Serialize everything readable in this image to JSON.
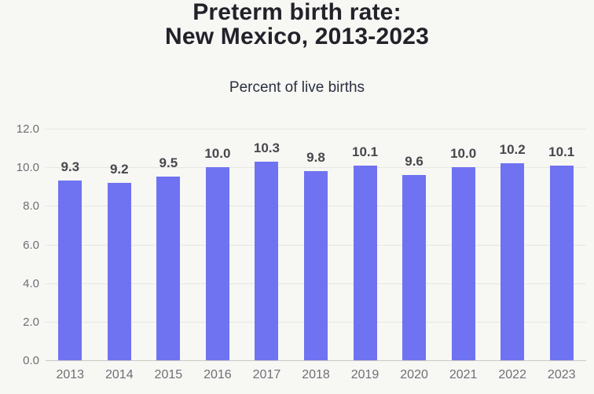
{
  "page": {
    "background": "#f7f7f4"
  },
  "header": {
    "title_line1": "Preterm birth rate:",
    "title_line2": "New Mexico, 2013-2023",
    "subtitle": "Percent of live births"
  },
  "chart_data": {
    "type": "bar",
    "title": "Preterm birth rate: New Mexico, 2013-2023",
    "subtitle": "Percent of live births",
    "categories": [
      "2013",
      "2014",
      "2015",
      "2016",
      "2017",
      "2018",
      "2019",
      "2020",
      "2021",
      "2022",
      "2023"
    ],
    "values": [
      9.3,
      9.2,
      9.5,
      10.0,
      10.3,
      9.8,
      10.1,
      9.6,
      10.0,
      10.2,
      10.1
    ],
    "xlabel": "",
    "ylabel": "Percent of live births",
    "ylim": [
      0,
      12
    ],
    "ytick_step": 2,
    "ytick_labels": [
      "0.0",
      "2.0",
      "4.0",
      "6.0",
      "8.0",
      "10.0",
      "12.0"
    ],
    "grid": true,
    "legend": false,
    "bar_color": "#6f73f1",
    "value_label_decimals": 1
  }
}
